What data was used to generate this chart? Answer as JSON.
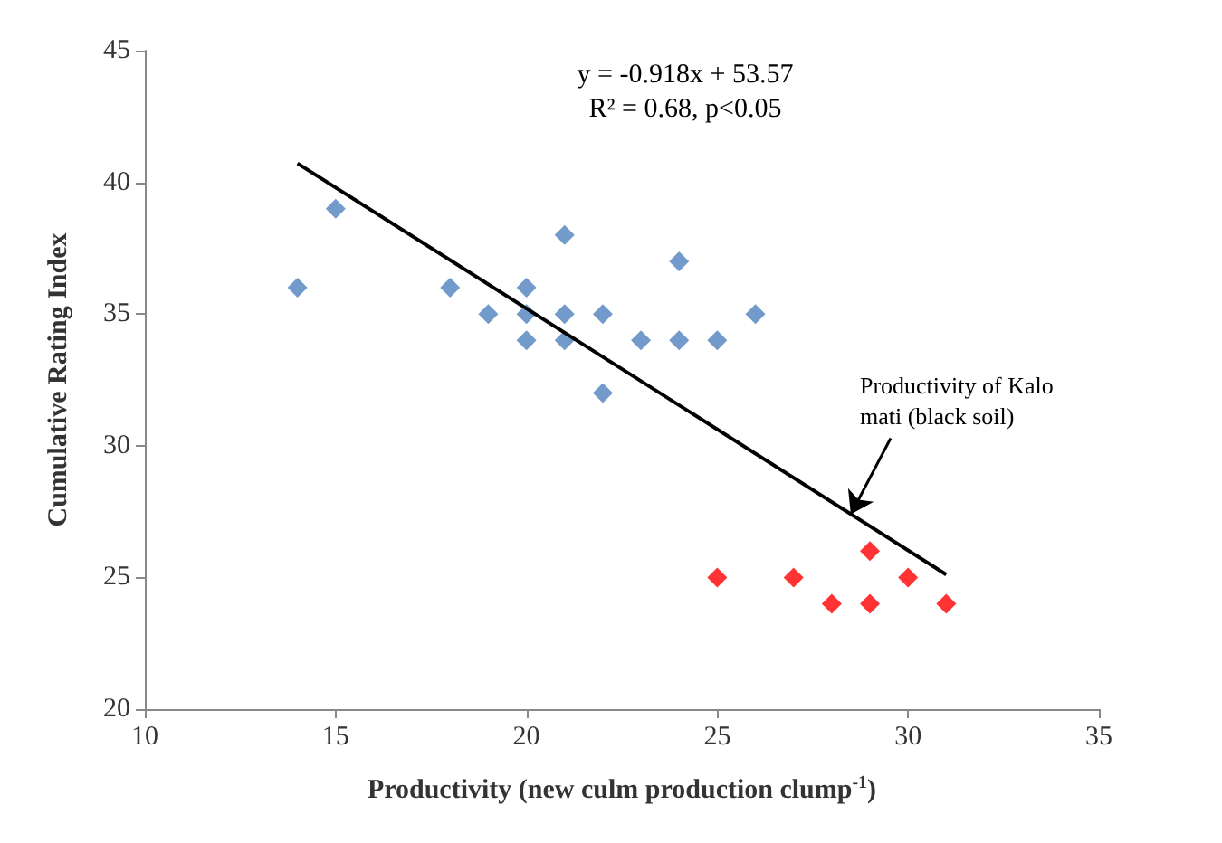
{
  "chart_data": {
    "type": "scatter",
    "xlabel": "Productivity (new culm production clump$^{-1}$)",
    "ylabel": "Cumulative Rating Index",
    "xlim": [
      10,
      35
    ],
    "xticks": [
      10,
      15,
      20,
      25,
      30,
      35
    ],
    "ylim": [
      20,
      45
    ],
    "yticks": [
      20,
      25,
      30,
      35,
      40,
      45
    ],
    "grid": false,
    "marker": "diamond",
    "series": [
      {
        "color": "#4f81bd",
        "x": [
          14,
          15,
          18,
          19,
          20,
          20,
          20,
          21,
          21,
          21,
          22,
          22,
          23,
          24,
          24,
          25,
          26
        ],
        "values": [
          36,
          39,
          36,
          35,
          36,
          35,
          34,
          38,
          35,
          34,
          35,
          32,
          34,
          37,
          34,
          34,
          35
        ]
      },
      {
        "color": "#ff0000",
        "x": [
          25,
          27,
          28,
          29,
          29,
          30,
          31
        ],
        "values": [
          25,
          25,
          24,
          26,
          24,
          25,
          24
        ]
      },
      {
        "type": "line",
        "color": "#000000",
        "marker": "none",
        "x": [
          14,
          31
        ],
        "values": [
          40.72,
          25.11
        ]
      }
    ],
    "annotations": [
      "y = -0.918x + 53.57\nR² = 0.68, p<0.05",
      {
        "text": "Productivity of Kalo\nmati (black soil)",
        "x": 28.5,
        "y": 27.4
      }
    ]
  }
}
